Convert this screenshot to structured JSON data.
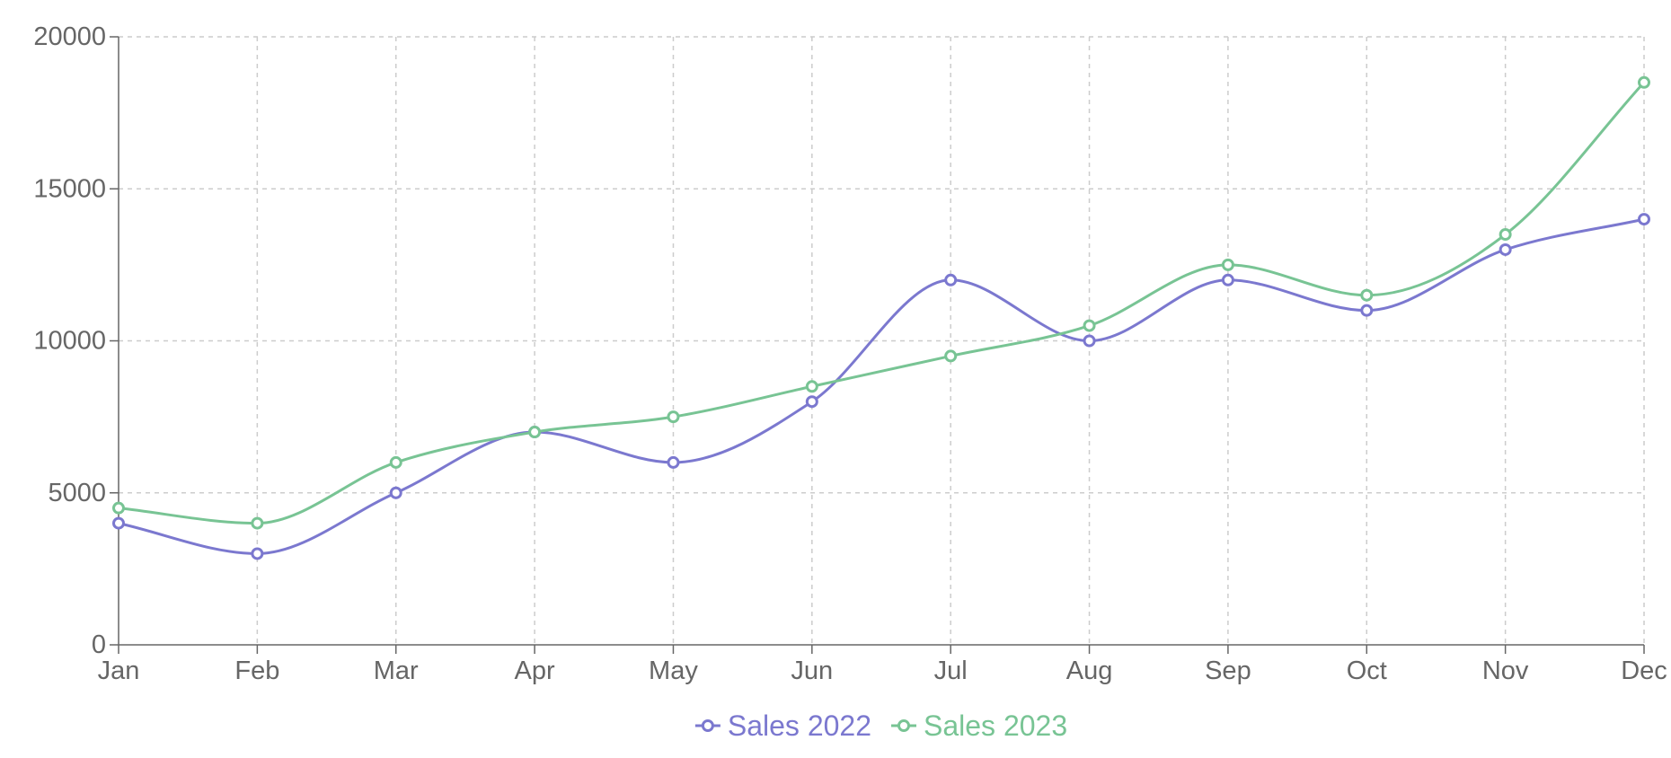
{
  "chart_data": {
    "type": "line",
    "title": "",
    "xlabel": "",
    "ylabel": "",
    "categories": [
      "Jan",
      "Feb",
      "Mar",
      "Apr",
      "May",
      "Jun",
      "Jul",
      "Aug",
      "Sep",
      "Oct",
      "Nov",
      "Dec"
    ],
    "ylim": [
      0,
      20000
    ],
    "yticks": [
      0,
      5000,
      10000,
      15000,
      20000
    ],
    "grid": true,
    "legend_position": "bottom-center",
    "series": [
      {
        "name": "Sales 2022",
        "color": "#7b78cf",
        "values": [
          4000,
          3000,
          5000,
          7000,
          6000,
          8000,
          12000,
          10000,
          12000,
          11000,
          13000,
          14000
        ]
      },
      {
        "name": "Sales 2023",
        "color": "#78c494",
        "values": [
          4500,
          4000,
          6000,
          7000,
          7500,
          8500,
          9500,
          10500,
          12500,
          11500,
          13500,
          18500
        ]
      }
    ]
  }
}
